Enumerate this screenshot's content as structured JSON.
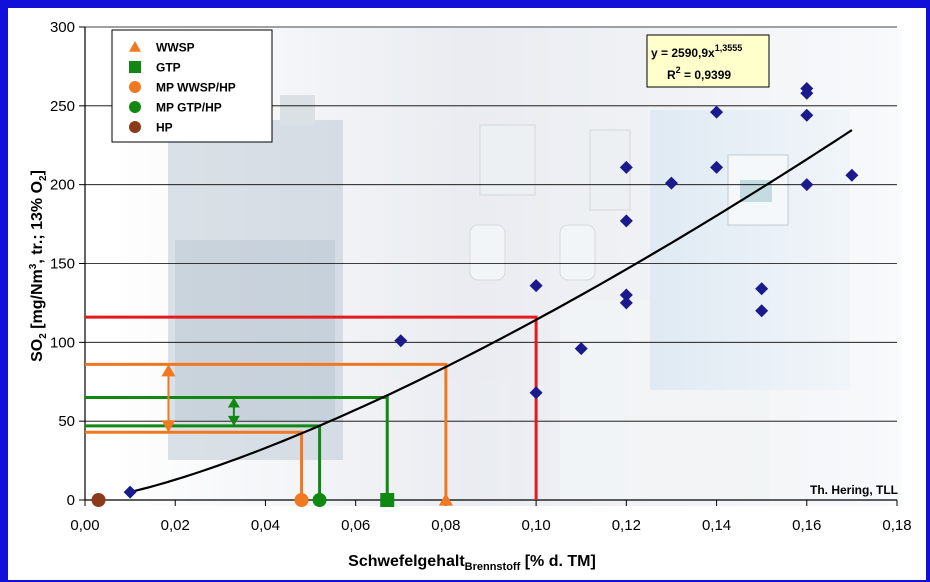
{
  "chart_data": {
    "type": "scatter",
    "xlim": [
      0,
      0.18
    ],
    "ylim": [
      0,
      300
    ],
    "x_ticks": [
      "0,00",
      "0,02",
      "0,04",
      "0,06",
      "0,08",
      "0,10",
      "0,12",
      "0,14",
      "0,16",
      "0,18"
    ],
    "y_ticks": [
      "0",
      "50",
      "100",
      "150",
      "200",
      "250",
      "300"
    ],
    "xlabel": {
      "main": "Schwefelgehalt",
      "sub": "Brennstoff",
      "tail": " [% d. TM]"
    },
    "ylabel": {
      "a": "SO",
      "a_sub": "2",
      "b": " [mg/Nm",
      "b_sup": "3",
      "c": ", tr.; 13% O",
      "c_sub": "2",
      "d": "]"
    },
    "grid": true,
    "series": [
      {
        "name": "",
        "marker": "diamond",
        "color": "#1a1a8c",
        "points": [
          [
            0.01,
            5
          ],
          [
            0.07,
            101
          ],
          [
            0.1,
            136
          ],
          [
            0.1,
            68
          ],
          [
            0.11,
            96
          ],
          [
            0.12,
            211
          ],
          [
            0.12,
            177
          ],
          [
            0.12,
            130
          ],
          [
            0.12,
            125
          ],
          [
            0.13,
            201
          ],
          [
            0.14,
            246
          ],
          [
            0.14,
            211
          ],
          [
            0.15,
            134
          ],
          [
            0.15,
            120
          ],
          [
            0.16,
            261
          ],
          [
            0.16,
            258
          ],
          [
            0.16,
            244
          ],
          [
            0.16,
            200
          ],
          [
            0.17,
            206
          ]
        ]
      }
    ],
    "legend": {
      "position": "top-left",
      "entries": [
        {
          "label": "WWSP",
          "marker": "triangle",
          "color": "#f07820"
        },
        {
          "label": "GTP",
          "marker": "square",
          "color": "#118811"
        },
        {
          "label": "MP WWSP/HP",
          "marker": "circle",
          "color": "#f07820"
        },
        {
          "label": "MP GTP/HP",
          "marker": "circle",
          "color": "#118811"
        },
        {
          "label": "HP",
          "marker": "circle",
          "color": "#8b3a1a"
        }
      ]
    },
    "reference_markers": [
      {
        "label": "HP",
        "x": 0.003,
        "marker": "circle",
        "color": "#8b3a1a"
      },
      {
        "label": "MP WWSP/HP",
        "x": 0.048,
        "marker": "circle",
        "color": "#f07820"
      },
      {
        "label": "MP GTP/HP",
        "x": 0.052,
        "marker": "circle",
        "color": "#118811"
      },
      {
        "label": "GTP",
        "x": 0.067,
        "marker": "square",
        "color": "#118811"
      },
      {
        "label": "WWSP",
        "x": 0.08,
        "marker": "triangle",
        "color": "#f07820"
      }
    ],
    "fit": {
      "a": 2590.9,
      "b": 1.3555,
      "eq_main": "y = 2590,9x",
      "eq_exp": "1,3555",
      "r2_label": "R",
      "r2_exp": "2",
      "r2_value": " = 0,9399",
      "color": "#000000"
    },
    "guide_lines": [
      {
        "x": 0.1,
        "y": 116,
        "color": "#e51b1b"
      },
      {
        "x": 0.08,
        "y": 86,
        "color": "#f07820"
      },
      {
        "x": 0.067,
        "y": 65,
        "color": "#118811"
      },
      {
        "x": 0.052,
        "y": 47,
        "color": "#118811"
      },
      {
        "x": 0.048,
        "y": 43,
        "color": "#f07820"
      }
    ],
    "range_arrows": [
      {
        "x": 0.0185,
        "y1": 43,
        "y2": 86,
        "color": "#f07820",
        "head": "triangle"
      },
      {
        "x": 0.033,
        "y1": 47,
        "y2": 65,
        "color": "#118811",
        "head": "diamond"
      }
    ],
    "annotation": "Th. Hering, TLL"
  }
}
